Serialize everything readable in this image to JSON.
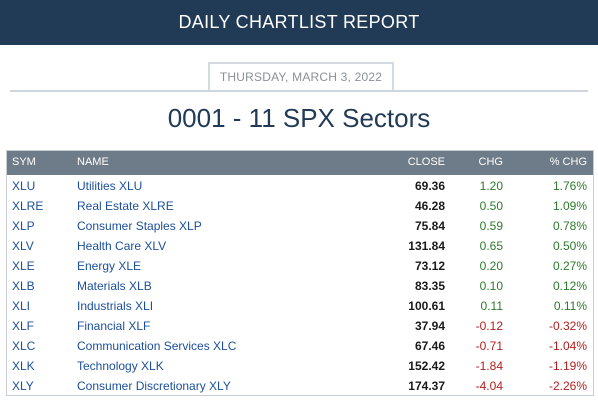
{
  "header": {
    "title": "DAILY CHARTLIST REPORT"
  },
  "report": {
    "date": "THURSDAY, MARCH 3, 2022",
    "title": "0001 - 11 SPX Sectors"
  },
  "table": {
    "columns": {
      "sym": "SYM",
      "name": "NAME",
      "close": "CLOSE",
      "chg": "CHG",
      "pct": "% CHG"
    },
    "rows": [
      {
        "sym": "XLU",
        "name": "Utilities XLU",
        "close": "69.36",
        "chg": "1.20",
        "pct": "1.76%",
        "dir": "pos"
      },
      {
        "sym": "XLRE",
        "name": "Real Estate XLRE",
        "close": "46.28",
        "chg": "0.50",
        "pct": "1.09%",
        "dir": "pos"
      },
      {
        "sym": "XLP",
        "name": "Consumer Staples XLP",
        "close": "75.84",
        "chg": "0.59",
        "pct": "0.78%",
        "dir": "pos"
      },
      {
        "sym": "XLV",
        "name": "Health Care XLV",
        "close": "131.84",
        "chg": "0.65",
        "pct": "0.50%",
        "dir": "pos"
      },
      {
        "sym": "XLE",
        "name": "Energy XLE",
        "close": "73.12",
        "chg": "0.20",
        "pct": "0.27%",
        "dir": "pos"
      },
      {
        "sym": "XLB",
        "name": "Materials XLB",
        "close": "83.35",
        "chg": "0.10",
        "pct": "0.12%",
        "dir": "pos"
      },
      {
        "sym": "XLI",
        "name": "Industrials XLI",
        "close": "100.61",
        "chg": "0.11",
        "pct": "0.11%",
        "dir": "pos"
      },
      {
        "sym": "XLF",
        "name": "Financial XLF",
        "close": "37.94",
        "chg": "-0.12",
        "pct": "-0.32%",
        "dir": "neg"
      },
      {
        "sym": "XLC",
        "name": "Communication Services XLC",
        "close": "67.46",
        "chg": "-0.71",
        "pct": "-1.04%",
        "dir": "neg"
      },
      {
        "sym": "XLK",
        "name": "Technology XLK",
        "close": "152.42",
        "chg": "-1.84",
        "pct": "-1.19%",
        "dir": "neg"
      },
      {
        "sym": "XLY",
        "name": "Consumer Discretionary XLY",
        "close": "174.37",
        "chg": "-4.04",
        "pct": "-2.26%",
        "dir": "neg"
      }
    ]
  }
}
